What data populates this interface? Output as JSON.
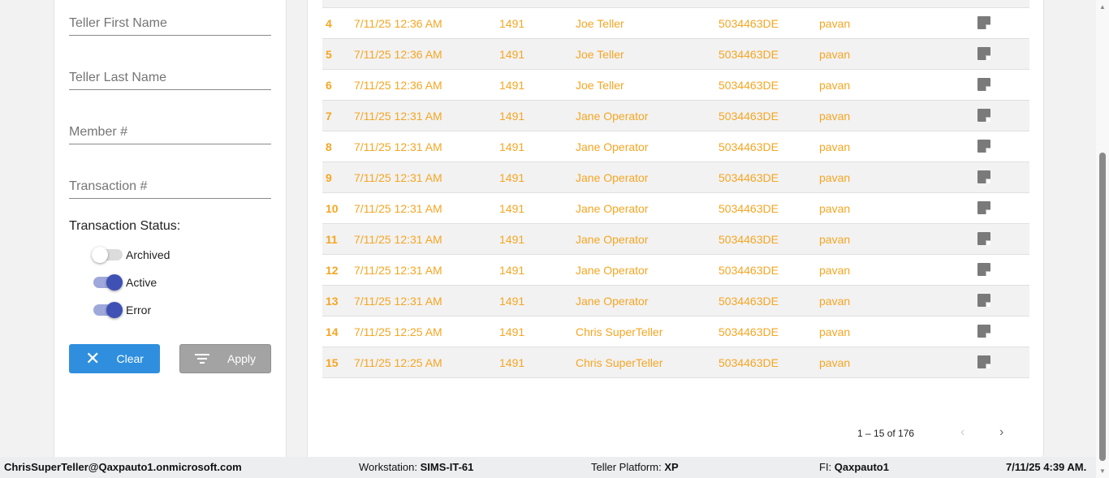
{
  "filters": {
    "teller_first_name": "Teller First Name",
    "teller_last_name": "Teller Last Name",
    "member": "Member #",
    "transaction": "Transaction #",
    "status_label": "Transaction Status:",
    "toggles": [
      {
        "label": "Archived",
        "on": false
      },
      {
        "label": "Active",
        "on": true
      },
      {
        "label": "Error",
        "on": true
      }
    ],
    "clear_label": "Clear",
    "apply_label": "Apply"
  },
  "rows": [
    {
      "n": "4",
      "date": "7/11/25 12:36 AM",
      "ws": "1491",
      "teller": "Joe Teller",
      "member": "5034463DE",
      "user": "pavan"
    },
    {
      "n": "5",
      "date": "7/11/25 12:36 AM",
      "ws": "1491",
      "teller": "Joe Teller",
      "member": "5034463DE",
      "user": "pavan"
    },
    {
      "n": "6",
      "date": "7/11/25 12:36 AM",
      "ws": "1491",
      "teller": "Joe Teller",
      "member": "5034463DE",
      "user": "pavan"
    },
    {
      "n": "7",
      "date": "7/11/25 12:31 AM",
      "ws": "1491",
      "teller": "Jane Operator",
      "member": "5034463DE",
      "user": "pavan"
    },
    {
      "n": "8",
      "date": "7/11/25 12:31 AM",
      "ws": "1491",
      "teller": "Jane Operator",
      "member": "5034463DE",
      "user": "pavan"
    },
    {
      "n": "9",
      "date": "7/11/25 12:31 AM",
      "ws": "1491",
      "teller": "Jane Operator",
      "member": "5034463DE",
      "user": "pavan"
    },
    {
      "n": "10",
      "date": "7/11/25 12:31 AM",
      "ws": "1491",
      "teller": "Jane Operator",
      "member": "5034463DE",
      "user": "pavan"
    },
    {
      "n": "11",
      "date": "7/11/25 12:31 AM",
      "ws": "1491",
      "teller": "Jane Operator",
      "member": "5034463DE",
      "user": "pavan"
    },
    {
      "n": "12",
      "date": "7/11/25 12:31 AM",
      "ws": "1491",
      "teller": "Jane Operator",
      "member": "5034463DE",
      "user": "pavan"
    },
    {
      "n": "13",
      "date": "7/11/25 12:31 AM",
      "ws": "1491",
      "teller": "Jane Operator",
      "member": "5034463DE",
      "user": "pavan"
    },
    {
      "n": "14",
      "date": "7/11/25 12:25 AM",
      "ws": "1491",
      "teller": "Chris SuperTeller",
      "member": "5034463DE",
      "user": "pavan"
    },
    {
      "n": "15",
      "date": "7/11/25 12:25 AM",
      "ws": "1491",
      "teller": "Chris SuperTeller",
      "member": "5034463DE",
      "user": "pavan"
    }
  ],
  "pagination": {
    "range": "1 – 15 of 176"
  },
  "statusbar": {
    "user": "ChrisSuperTeller@Qaxpauto1.onmicrosoft.com",
    "workstation_label": "Workstation:",
    "workstation": "SIMS-IT-61",
    "platform_label": "Teller Platform:",
    "platform": "XP",
    "fi_label": "FI:",
    "fi": "Qaxpauto1",
    "datetime": "7/11/25 4:39 AM."
  },
  "colors": {
    "row_text": "#f5a623",
    "toggle_on": "#3f51b5",
    "clear": "#2f8fde",
    "apply": "#a3a3a3"
  }
}
